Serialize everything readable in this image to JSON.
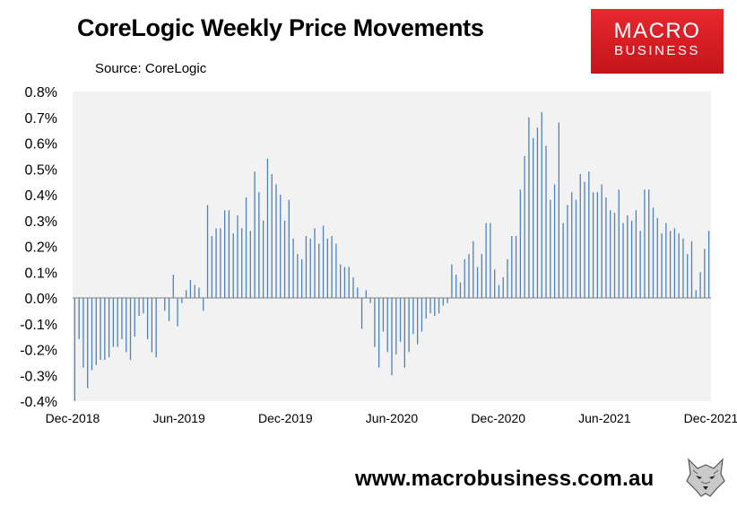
{
  "title": "CoreLogic Weekly Price Movements",
  "source": "Source: CoreLogic",
  "logo": {
    "line1": "MACRO",
    "line2": "BUSINESS"
  },
  "footer_url": "www.macrobusiness.com.au",
  "icons": {
    "logo_mark": "wolf-head-icon"
  },
  "colors": {
    "bars": "#4f81bd",
    "plot_bg": "#f2f2f2",
    "logo_red": "#d91f26"
  },
  "chart_data": {
    "type": "bar",
    "title": "CoreLogic Weekly Price Movements",
    "xlabel": "",
    "ylabel": "",
    "ylim": [
      -0.4,
      0.8
    ],
    "y_ticks": [
      "-0.4%",
      "-0.3%",
      "-0.2%",
      "-0.1%",
      "0.0%",
      "0.1%",
      "0.2%",
      "0.3%",
      "0.4%",
      "0.5%",
      "0.6%",
      "0.7%",
      "0.8%"
    ],
    "x_tick_labels": [
      "Dec-2018",
      "Jun-2019",
      "Dec-2019",
      "Jun-2020",
      "Dec-2020",
      "Jun-2021",
      "Dec-2021"
    ],
    "grid": false,
    "legend": "none",
    "series": [
      {
        "values": [
          -0.4,
          -0.16,
          -0.27,
          -0.35,
          -0.28,
          -0.26,
          -0.24,
          -0.24,
          -0.23,
          -0.19,
          -0.19,
          -0.16,
          -0.21,
          -0.24,
          -0.15,
          -0.07,
          -0.06,
          -0.16,
          -0.21,
          -0.23,
          0.0,
          -0.05,
          -0.09,
          0.09,
          -0.11,
          -0.02,
          0.03,
          0.07,
          0.05,
          0.04,
          -0.05,
          0.36,
          0.24,
          0.27,
          0.27,
          0.34,
          0.34,
          0.25,
          0.32,
          0.27,
          0.39,
          0.26,
          0.49,
          0.41,
          0.3,
          0.54,
          0.48,
          0.44,
          0.4,
          0.3,
          0.38,
          0.23,
          0.17,
          0.15,
          0.24,
          0.23,
          0.27,
          0.21,
          0.28,
          0.23,
          0.24,
          0.21,
          0.13,
          0.12,
          0.12,
          0.08,
          0.04,
          -0.12,
          0.03,
          -0.02,
          -0.19,
          -0.27,
          -0.13,
          -0.21,
          -0.3,
          -0.22,
          -0.17,
          -0.27,
          -0.21,
          -0.14,
          -0.18,
          -0.13,
          -0.08,
          -0.06,
          -0.07,
          -0.06,
          -0.03,
          -0.02,
          0.13,
          0.09,
          0.06,
          0.15,
          0.17,
          0.22,
          0.12,
          0.17,
          0.29,
          0.29,
          0.11,
          0.05,
          0.08,
          0.15,
          0.24,
          0.24,
          0.42,
          0.55,
          0.7,
          0.62,
          0.66,
          0.72,
          0.59,
          0.38,
          0.44,
          0.68,
          0.29,
          0.36,
          0.41,
          0.38,
          0.48,
          0.45,
          0.49,
          0.41,
          0.41,
          0.44,
          0.39,
          0.34,
          0.33,
          0.42,
          0.29,
          0.32,
          0.3,
          0.34,
          0.26,
          0.42,
          0.42,
          0.35,
          0.31,
          0.25,
          0.29,
          0.26,
          0.27,
          0.25,
          0.23,
          0.17,
          0.22,
          0.03,
          0.1,
          0.19,
          0.26
        ]
      }
    ]
  }
}
